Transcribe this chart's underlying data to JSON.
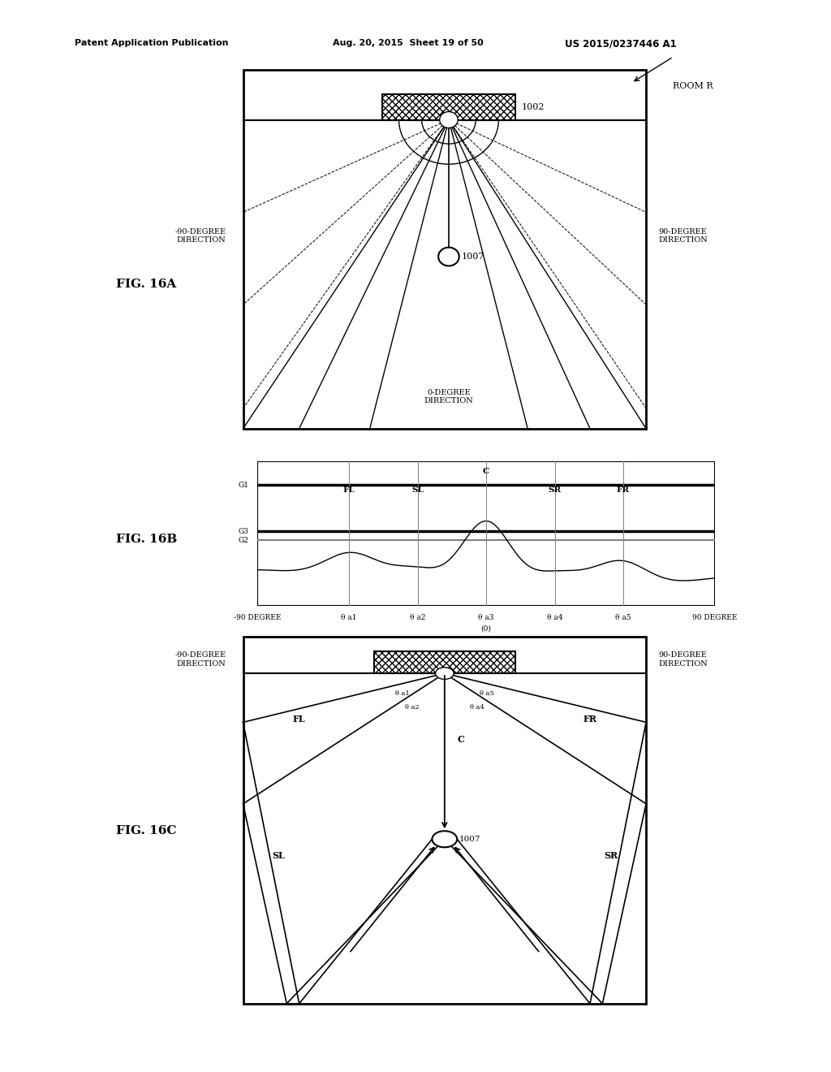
{
  "bg_color": "#ffffff",
  "header_text1": "Patent Application Publication",
  "header_text2": "Aug. 20, 2015  Sheet 19 of 50",
  "header_text3": "US 2015/0237446 A1",
  "fig16a_label": "FIG. 16A",
  "fig16b_label": "FIG. 16B",
  "fig16c_label": "FIG. 16C",
  "room_label": "ROOM R",
  "label_1002": "1002",
  "label_1007": "1007",
  "label_90deg_right": "90-DEGREE\nDIRECTION",
  "label_90deg_left": "-90-DEGREE\nDIRECTION",
  "label_0deg": "0-DEGREE\nDIRECTION",
  "channel_labels": [
    "FL",
    "SL",
    "C",
    "SR",
    "FR"
  ],
  "gain_labels": [
    "G1",
    "G3",
    "G2"
  ],
  "theta_labels": [
    "θ a1",
    "θ a2",
    "θ a3",
    "θ a4",
    "θ a5"
  ],
  "degree_left": "-90 DEGREE",
  "degree_right": "90 DEGREE",
  "zero_label": "(0)"
}
